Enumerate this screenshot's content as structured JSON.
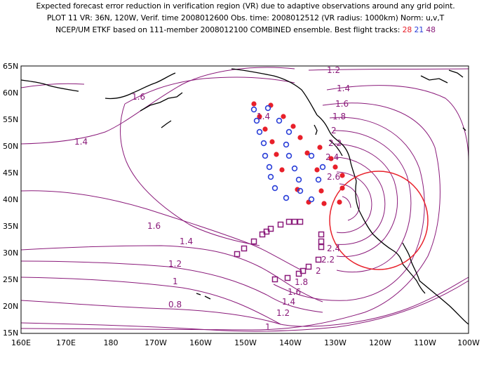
{
  "header": {
    "line1": "Expected forecast error reduction in verification region (VR) due to adaptive observations around any grid point.",
    "line2": "PLOT 11 VR: 36N, 120W, Verif. time 2008012600 Obs. time: 2008012512 (VR radius: 1000km) Norm: u,v,T",
    "line3_prefix": "NCEP/UM ETKF based on 111-member 2008012100 COMBINED ensemble.  Best flight tracks: ",
    "track_counts": [
      "28",
      "21",
      "48"
    ]
  },
  "axes": {
    "y_ticks": [
      "65N",
      "60N",
      "55N",
      "50N",
      "45N",
      "40N",
      "35N",
      "30N",
      "25N",
      "20N",
      "15N"
    ],
    "x_ticks": [
      "160E",
      "170E",
      "180",
      "170W",
      "160W",
      "150W",
      "140W",
      "130W",
      "120W",
      "110W",
      "100W"
    ]
  },
  "contours": {
    "color": "#8a1a7a",
    "labels": [
      "1.6",
      "1.4",
      "1.2",
      "1.4",
      "1.6",
      "1.8",
      "2",
      "2.2",
      "2.4",
      "2.6",
      "1.6",
      "1.4",
      "1.2",
      "1",
      "0.8",
      "2.4",
      "2.2",
      "2",
      "1.8",
      "1.6",
      "1.4",
      "1.2",
      "1",
      "1.4"
    ]
  },
  "verification_region": {
    "center": "36N, 120W",
    "radius": "1000km",
    "color": "#e8202a"
  },
  "tracks": {
    "red": {
      "color": "#e8202a",
      "count": "28"
    },
    "blue": {
      "color": "#2a3fd8",
      "count": "21"
    },
    "purple": {
      "color": "#8a1a7a",
      "count": "48"
    }
  }
}
